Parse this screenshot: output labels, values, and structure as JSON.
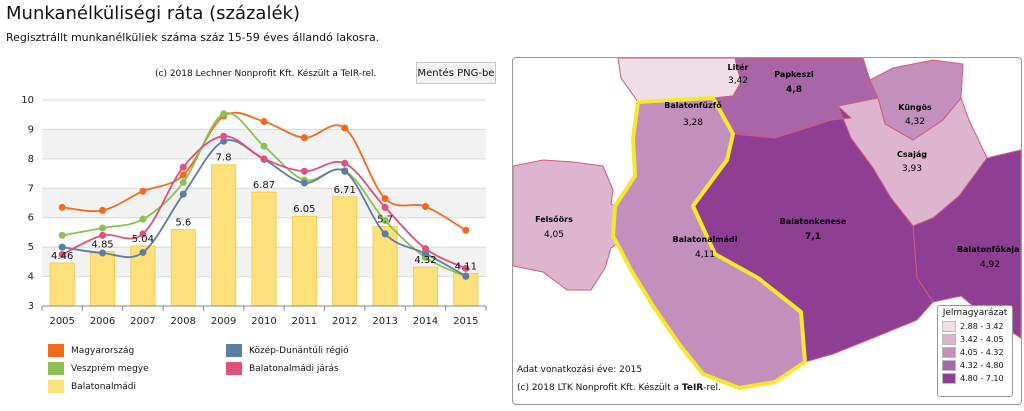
{
  "page": {
    "title": "Munkanélküliségi ráta (százalék)",
    "subtitle": "Regisztrállt munkanélküliek száma száz 15-59 éves állandó lakosra.",
    "save_button": "Mentés PNG-be",
    "chart_credit": "(c) 2018 Lechner Nonprofit Kft. Készült a TeIR-rel."
  },
  "chart_data": {
    "type": "bar",
    "categories": [
      "2005",
      "2006",
      "2007",
      "2008",
      "2009",
      "2010",
      "2011",
      "2012",
      "2013",
      "2014",
      "2015"
    ],
    "ylim": [
      3,
      10
    ],
    "yticks": [
      "3",
      "4",
      "5",
      "6",
      "7",
      "8",
      "9",
      "10"
    ],
    "grid": true,
    "bar_series": {
      "name": "Balatonalmádi",
      "color": "#fde07a",
      "values": [
        4.46,
        4.85,
        5.04,
        5.6,
        7.8,
        6.87,
        6.05,
        6.71,
        5.7,
        4.32,
        4.11
      ],
      "labels": [
        "4.46",
        "4.85",
        "5.04",
        "5.6",
        "7.8",
        "6.87",
        "6.05",
        "6.71",
        "5.7",
        "4.32",
        "4.11"
      ]
    },
    "line_series": [
      {
        "name": "Magyarország",
        "color": "#f26b1d",
        "values": [
          6.35,
          6.25,
          6.9,
          7.45,
          9.45,
          9.27,
          8.72,
          9.05,
          6.65,
          6.38,
          5.57
        ]
      },
      {
        "name": "Veszprém megye",
        "color": "#8cc152",
        "values": [
          5.4,
          5.65,
          5.95,
          7.2,
          9.53,
          8.43,
          7.28,
          7.6,
          5.9,
          4.65,
          4.0
        ]
      },
      {
        "name": "Közép-Dunántúli régió",
        "color": "#5c7ea3",
        "values": [
          5.0,
          4.8,
          4.82,
          6.8,
          8.6,
          7.98,
          7.18,
          7.58,
          5.45,
          4.78,
          4.02
        ]
      },
      {
        "name": "Balatonalmádi járás",
        "color": "#e0507a",
        "values": [
          4.75,
          5.4,
          5.45,
          7.72,
          8.77,
          8.0,
          7.58,
          7.85,
          6.35,
          4.95,
          4.28
        ]
      }
    ],
    "legend": [
      {
        "name": "Magyarország",
        "color": "#f26b1d"
      },
      {
        "name": "Közép-Dunántúli régió",
        "color": "#5c7ea3"
      },
      {
        "name": "Veszprém megye",
        "color": "#8cc152"
      },
      {
        "name": "Balatonalmádi járás",
        "color": "#e0507a"
      },
      {
        "name": "Balatonalmádi",
        "color": "#fde07a"
      }
    ]
  },
  "map": {
    "regions": [
      {
        "name": "Litér",
        "value": "3,42"
      },
      {
        "name": "Papkeszi",
        "value": "4,8"
      },
      {
        "name": "Balatonfűzfő",
        "value": "3,28"
      },
      {
        "name": "Küngös",
        "value": "4,32"
      },
      {
        "name": "Csajág",
        "value": "3,93"
      },
      {
        "name": "Felsőörs",
        "value": "4,05"
      },
      {
        "name": "Balatonkenese",
        "value": "7,1"
      },
      {
        "name": "Balatonalmádi",
        "value": "4,11"
      },
      {
        "name": "Balatonfőkaja",
        "value": "4,92"
      }
    ],
    "year_note": "Adat vonatkozási éve: 2015",
    "credit_prefix": "(c) 2018 LTK Nonprofit Kft. Készült a ",
    "credit_brand": "TeIR",
    "credit_suffix": "-rel.",
    "legend_title": "Jelmagyarázat",
    "legend": [
      {
        "range": "2.88 - 3.42",
        "color": "#f1dfe8"
      },
      {
        "range": "3.42 - 4.05",
        "color": "#ddb5cf"
      },
      {
        "range": "4.05 - 4.32",
        "color": "#c38fbd"
      },
      {
        "range": "4.32 - 4.80",
        "color": "#a866a8"
      },
      {
        "range": "4.80 - 7.10",
        "color": "#8e3f94"
      }
    ]
  }
}
